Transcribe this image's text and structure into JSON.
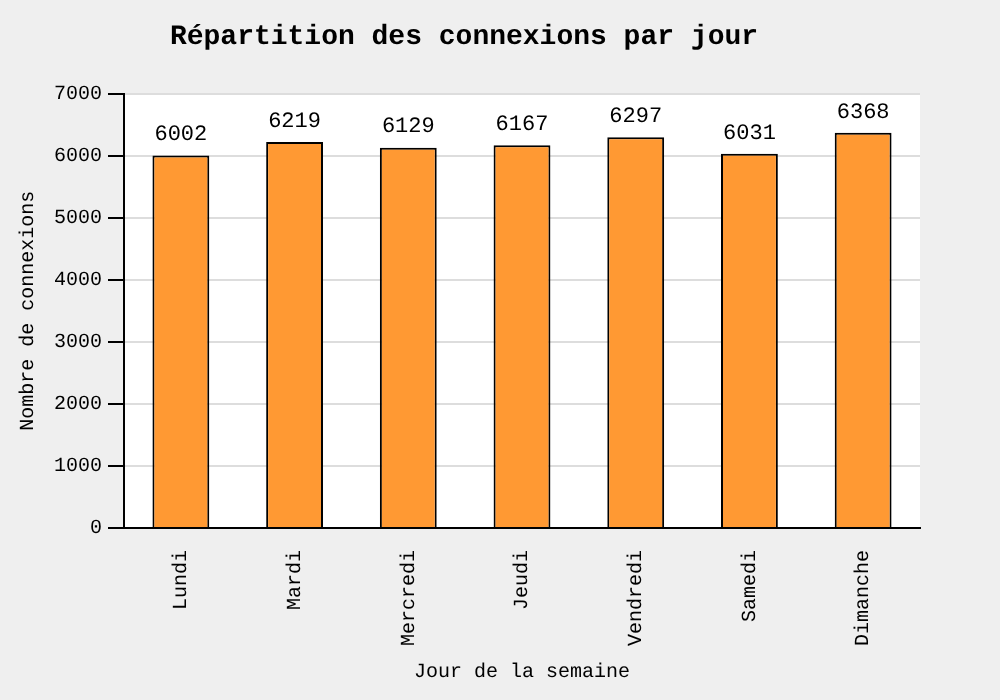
{
  "chart_data": {
    "type": "bar",
    "title": "Répartition des connexions par jour",
    "xlabel": "Jour de la semaine",
    "ylabel": "Nombre de connexions",
    "categories": [
      "Lundi",
      "Mardi",
      "Mercredi",
      "Jeudi",
      "Vendredi",
      "Samedi",
      "Dimanche"
    ],
    "values": [
      6002,
      6219,
      6129,
      6167,
      6297,
      6031,
      6368
    ],
    "color": "#ff9933",
    "ylim": [
      0,
      7000
    ],
    "yticks": [
      0,
      1000,
      2000,
      3000,
      4000,
      5000,
      6000,
      7000
    ],
    "grid": "y",
    "data_labels": true,
    "legend": false
  }
}
